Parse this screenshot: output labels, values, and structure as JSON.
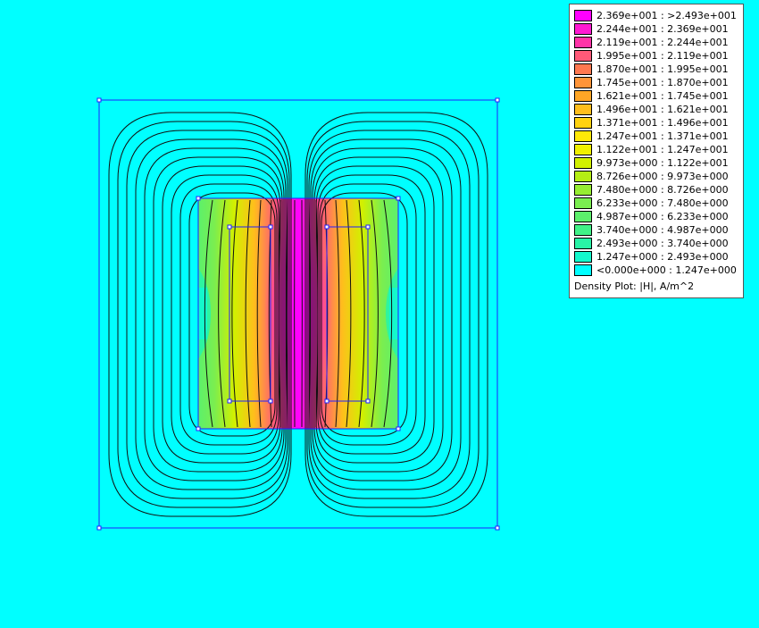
{
  "background_color": "#00ffff",
  "plot": {
    "outline_color": "#2020ff",
    "contour_color": "#101010"
  },
  "legend": {
    "title": "Density Plot: |H|, A/m^2",
    "entries": [
      {
        "label": "2.369e+001 : >2.493e+001",
        "color": "#ff00ff"
      },
      {
        "label": "2.244e+001 : 2.369e+001",
        "color": "#ff1ad2"
      },
      {
        "label": "2.119e+001 : 2.244e+001",
        "color": "#ff33a8"
      },
      {
        "label": "1.995e+001 : 2.119e+001",
        "color": "#ff5a78"
      },
      {
        "label": "1.870e+001 : 1.995e+001",
        "color": "#ff7850"
      },
      {
        "label": "1.745e+001 : 1.870e+001",
        "color": "#ff9438"
      },
      {
        "label": "1.621e+001 : 1.745e+001",
        "color": "#ffa626"
      },
      {
        "label": "1.496e+001 : 1.621e+001",
        "color": "#ffbe1c"
      },
      {
        "label": "1.371e+001 : 1.496e+001",
        "color": "#ffd210"
      },
      {
        "label": "1.247e+001 : 1.371e+001",
        "color": "#ffe808"
      },
      {
        "label": "1.122e+001 : 1.247e+001",
        "color": "#f0f000"
      },
      {
        "label": "9.973e+000 : 1.122e+001",
        "color": "#d2f000"
      },
      {
        "label": "8.726e+000 : 9.973e+000",
        "color": "#b4ee14"
      },
      {
        "label": "7.480e+000 : 8.726e+000",
        "color": "#96ee32"
      },
      {
        "label": "6.233e+000 : 7.480e+000",
        "color": "#7aee50"
      },
      {
        "label": "4.987e+000 : 6.233e+000",
        "color": "#5cf06c"
      },
      {
        "label": "3.740e+000 : 4.987e+000",
        "color": "#40f288"
      },
      {
        "label": "2.493e+000 : 3.740e+000",
        "color": "#28f4a6"
      },
      {
        "label": "1.247e+000 : 2.493e+000",
        "color": "#14f8cc"
      },
      {
        "label": "<0.000e+000 : 1.247e+000",
        "color": "#00ffff"
      }
    ]
  }
}
